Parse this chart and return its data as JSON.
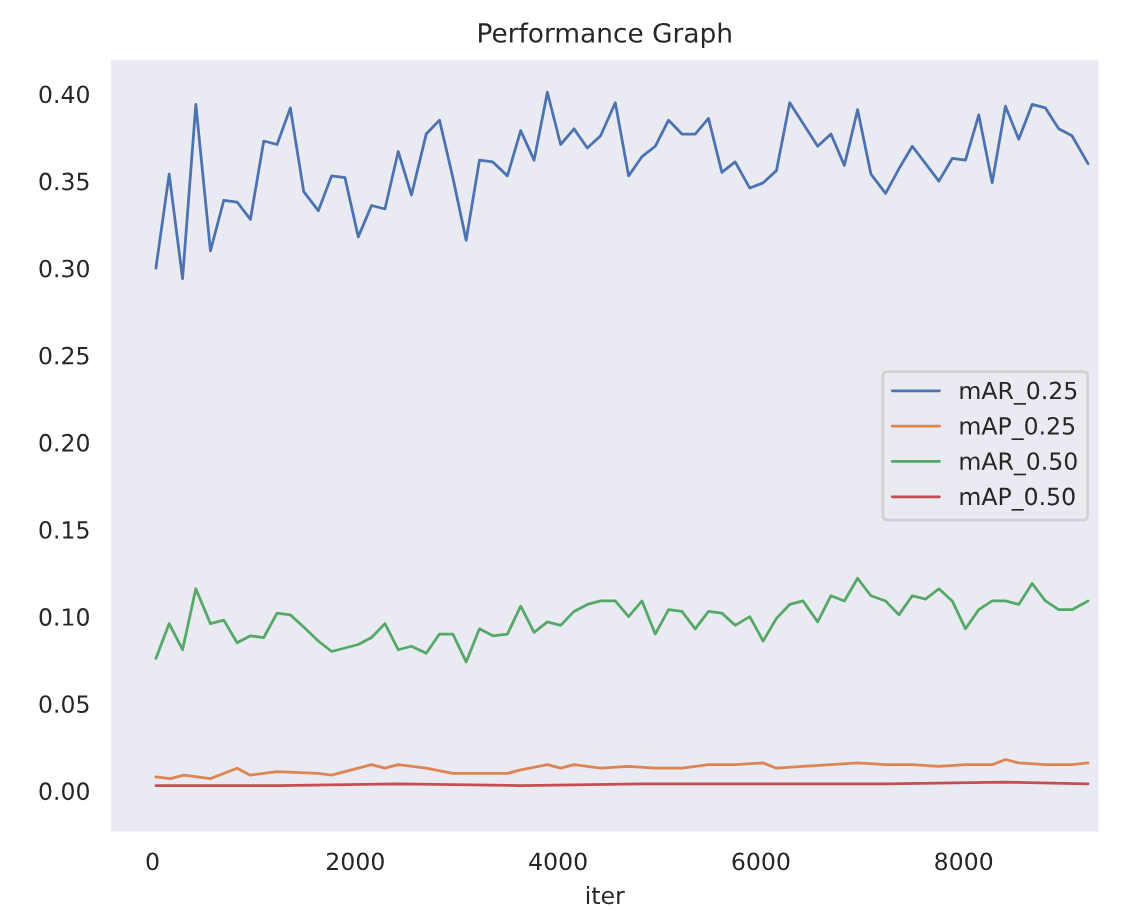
{
  "chart_data": {
    "type": "line",
    "title": "Performance Graph",
    "xlabel": "iter",
    "xlim": [
      -420,
      9340
    ],
    "xticks": [
      0,
      2000,
      4000,
      6000,
      8000
    ],
    "ylim": [
      -0.024,
      0.42
    ],
    "yticks": [
      {
        "value": 0,
        "label": "0.00"
      },
      {
        "value": 0.05,
        "label": "0.05"
      },
      {
        "value": 0.1,
        "label": "0.10"
      },
      {
        "value": 0.15,
        "label": "0.15"
      },
      {
        "value": 0.2,
        "label": "0.20"
      },
      {
        "value": 0.25,
        "label": "0.25"
      },
      {
        "value": 0.3,
        "label": "0.30"
      },
      {
        "value": 0.35,
        "label": "0.35"
      },
      {
        "value": 0.4,
        "label": "0.40"
      }
    ],
    "grid": false,
    "legend": "right",
    "line_style": "solid",
    "marker": "none",
    "x": [
      33,
      164,
      296,
      427,
      571,
      703,
      834,
      965,
      1097,
      1228,
      1359,
      1491,
      1635,
      1766,
      1898,
      2029,
      2160,
      2292,
      2423,
      2554,
      2699,
      2830,
      2962,
      3093,
      3224,
      3356,
      3500,
      3631,
      3763,
      3894,
      4025,
      4157,
      4288,
      4419,
      4564,
      4695,
      4827,
      4958,
      5089,
      5221,
      5352,
      5483,
      5615,
      5746,
      5890,
      6022,
      6153,
      6284,
      6416,
      6560,
      6691,
      6823,
      6954,
      7085,
      7230,
      7361,
      7493,
      7624,
      7755,
      7887,
      8018,
      8149,
      8281,
      8412,
      8543,
      8675,
      8806,
      8937,
      9068,
      9226
    ],
    "series": [
      {
        "name": "mAR_0.25",
        "color": "#4c72b0",
        "values": [
          0.3,
          0.354,
          0.294,
          0.394,
          0.31,
          0.339,
          0.338,
          0.328,
          0.373,
          0.371,
          0.392,
          0.344,
          0.333,
          0.353,
          0.352,
          0.318,
          0.336,
          0.334,
          0.367,
          0.342,
          0.377,
          0.385,
          0.352,
          0.316,
          0.362,
          0.361,
          0.353,
          0.379,
          0.362,
          0.401,
          0.371,
          0.38,
          0.369,
          0.376,
          0.395,
          0.353,
          0.364,
          0.37,
          0.385,
          0.377,
          0.377,
          0.386,
          0.355,
          0.361,
          0.346,
          0.349,
          0.356,
          0.395,
          0.383,
          0.37,
          0.377,
          0.359,
          0.391,
          0.354,
          0.343,
          0.357,
          0.37,
          0.36,
          0.35,
          0.363,
          0.362,
          0.388,
          0.349,
          0.393,
          0.374,
          0.394,
          0.392,
          0.38,
          0.376,
          0.36
        ]
      },
      {
        "name": "mAP_0.25",
        "color": "#dd8452",
        "x": [
          33,
          177,
          309,
          571,
          834,
          965,
          1228,
          1635,
          1766,
          2029,
          2160,
          2292,
          2423,
          2699,
          2962,
          3224,
          3500,
          3631,
          3894,
          4025,
          4157,
          4419,
          4695,
          4958,
          5221,
          5483,
          5746,
          6022,
          6153,
          6416,
          6691,
          6954,
          7230,
          7493,
          7755,
          8018,
          8281,
          8412,
          8543,
          8806,
          9068,
          9226
        ],
        "values": [
          0.008,
          0.007,
          0.009,
          0.007,
          0.013,
          0.009,
          0.011,
          0.01,
          0.009,
          0.013,
          0.015,
          0.013,
          0.015,
          0.013,
          0.01,
          0.01,
          0.01,
          0.012,
          0.015,
          0.013,
          0.015,
          0.013,
          0.014,
          0.013,
          0.013,
          0.015,
          0.015,
          0.016,
          0.013,
          0.014,
          0.015,
          0.016,
          0.015,
          0.015,
          0.014,
          0.015,
          0.015,
          0.018,
          0.016,
          0.015,
          0.015,
          0.016
        ]
      },
      {
        "name": "mAR_0.50",
        "color": "#55a868",
        "values": [
          0.076,
          0.096,
          0.081,
          0.116,
          0.096,
          0.098,
          0.085,
          0.089,
          0.088,
          0.102,
          0.101,
          0.094,
          0.086,
          0.08,
          0.082,
          0.084,
          0.088,
          0.096,
          0.081,
          0.083,
          0.079,
          0.09,
          0.09,
          0.074,
          0.093,
          0.089,
          0.09,
          0.106,
          0.091,
          0.097,
          0.095,
          0.103,
          0.107,
          0.109,
          0.109,
          0.1,
          0.109,
          0.09,
          0.104,
          0.103,
          0.093,
          0.103,
          0.102,
          0.095,
          0.1,
          0.086,
          0.099,
          0.107,
          0.109,
          0.097,
          0.112,
          0.109,
          0.122,
          0.112,
          0.109,
          0.101,
          0.112,
          0.11,
          0.116,
          0.109,
          0.093,
          0.104,
          0.109,
          0.109,
          0.107,
          0.119,
          0.109,
          0.104,
          0.104,
          0.109
        ]
      },
      {
        "name": "mAP_0.50",
        "color": "#c44e52",
        "x": [
          33,
          1228,
          2423,
          3631,
          4827,
          6022,
          7230,
          8412,
          9226
        ],
        "values": [
          0.003,
          0.003,
          0.004,
          0.003,
          0.004,
          0.004,
          0.004,
          0.005,
          0.004
        ]
      }
    ]
  }
}
